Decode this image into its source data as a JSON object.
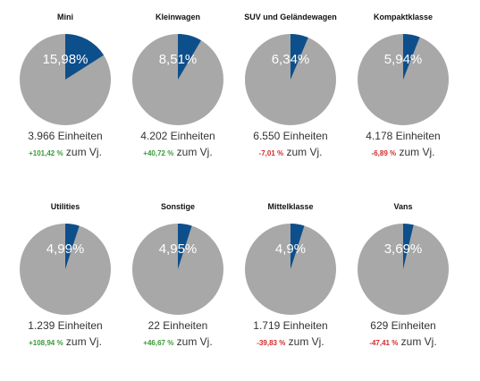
{
  "colors": {
    "slice": "#0d4f8b",
    "rest": "#a8a8a8",
    "positive": "#3a9a3a",
    "negative": "#d12c2c"
  },
  "chart_data": [
    {
      "type": "pie",
      "title": "Mini",
      "share_pct": 15.98,
      "share_label": "15,98%",
      "units_label": "3.966 Einheiten",
      "change_label": "+101,42 %",
      "change_direction": "positive",
      "suffix": "zum Vj."
    },
    {
      "type": "pie",
      "title": "Kleinwagen",
      "share_pct": 8.51,
      "share_label": "8,51%",
      "units_label": "4.202 Einheiten",
      "change_label": "+40,72 %",
      "change_direction": "positive",
      "suffix": "zum Vj."
    },
    {
      "type": "pie",
      "title": "SUV und Geländewagen",
      "share_pct": 6.34,
      "share_label": "6,34%",
      "units_label": "6.550 Einheiten",
      "change_label": "-7,01 %",
      "change_direction": "negative",
      "suffix": "zum Vj."
    },
    {
      "type": "pie",
      "title": "Kompaktklasse",
      "share_pct": 5.94,
      "share_label": "5,94%",
      "units_label": "4.178 Einheiten",
      "change_label": "-6,89 %",
      "change_direction": "negative",
      "suffix": "zum Vj."
    },
    {
      "type": "pie",
      "title": "Utilities",
      "share_pct": 4.99,
      "share_label": "4,99%",
      "units_label": "1.239 Einheiten",
      "change_label": "+108,94 %",
      "change_direction": "positive",
      "suffix": "zum Vj."
    },
    {
      "type": "pie",
      "title": "Sonstige",
      "share_pct": 4.95,
      "share_label": "4,95%",
      "units_label": "22 Einheiten",
      "change_label": "+46,67 %",
      "change_direction": "positive",
      "suffix": "zum Vj."
    },
    {
      "type": "pie",
      "title": "Mittelklasse",
      "share_pct": 4.9,
      "share_label": "4,9%",
      "units_label": "1.719 Einheiten",
      "change_label": "-39,83 %",
      "change_direction": "negative",
      "suffix": "zum Vj."
    },
    {
      "type": "pie",
      "title": "Vans",
      "share_pct": 3.69,
      "share_label": "3,69%",
      "units_label": "629 Einheiten",
      "change_label": "-47,41 %",
      "change_direction": "negative",
      "suffix": "zum Vj."
    }
  ]
}
